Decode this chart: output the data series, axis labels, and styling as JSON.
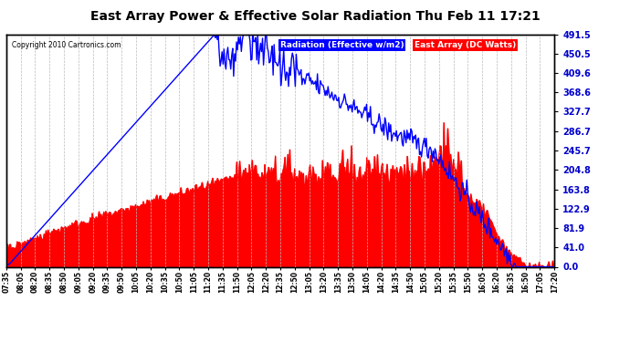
{
  "title": "East Array Power & Effective Solar Radiation Thu Feb 11 17:21",
  "copyright": "Copyright 2010 Cartronics.com",
  "legend_radiation": "Radiation (Effective w/m2)",
  "legend_east": "East Array (DC Watts)",
  "radiation_color": "#0000ff",
  "east_color": "#ff0000",
  "east_fill_color": "#ff0000",
  "background_color": "#ffffff",
  "grid_color": "#aaaaaa",
  "title_color": "#000000",
  "y_ticks": [
    0.0,
    41.0,
    81.9,
    122.9,
    163.8,
    204.8,
    245.7,
    286.7,
    327.7,
    368.6,
    409.6,
    450.5,
    491.5
  ],
  "x_tick_labels": [
    "07:35",
    "08:05",
    "08:20",
    "08:35",
    "08:50",
    "09:05",
    "09:20",
    "09:35",
    "09:50",
    "10:05",
    "10:20",
    "10:35",
    "10:50",
    "11:05",
    "11:20",
    "11:35",
    "11:50",
    "12:05",
    "12:20",
    "12:35",
    "12:50",
    "13:05",
    "13:20",
    "13:35",
    "13:50",
    "14:05",
    "14:20",
    "14:35",
    "14:50",
    "15:05",
    "15:20",
    "15:35",
    "15:50",
    "16:05",
    "16:20",
    "16:35",
    "16:50",
    "17:05",
    "17:20"
  ],
  "ylim": [
    0.0,
    491.5
  ],
  "n_points": 570
}
